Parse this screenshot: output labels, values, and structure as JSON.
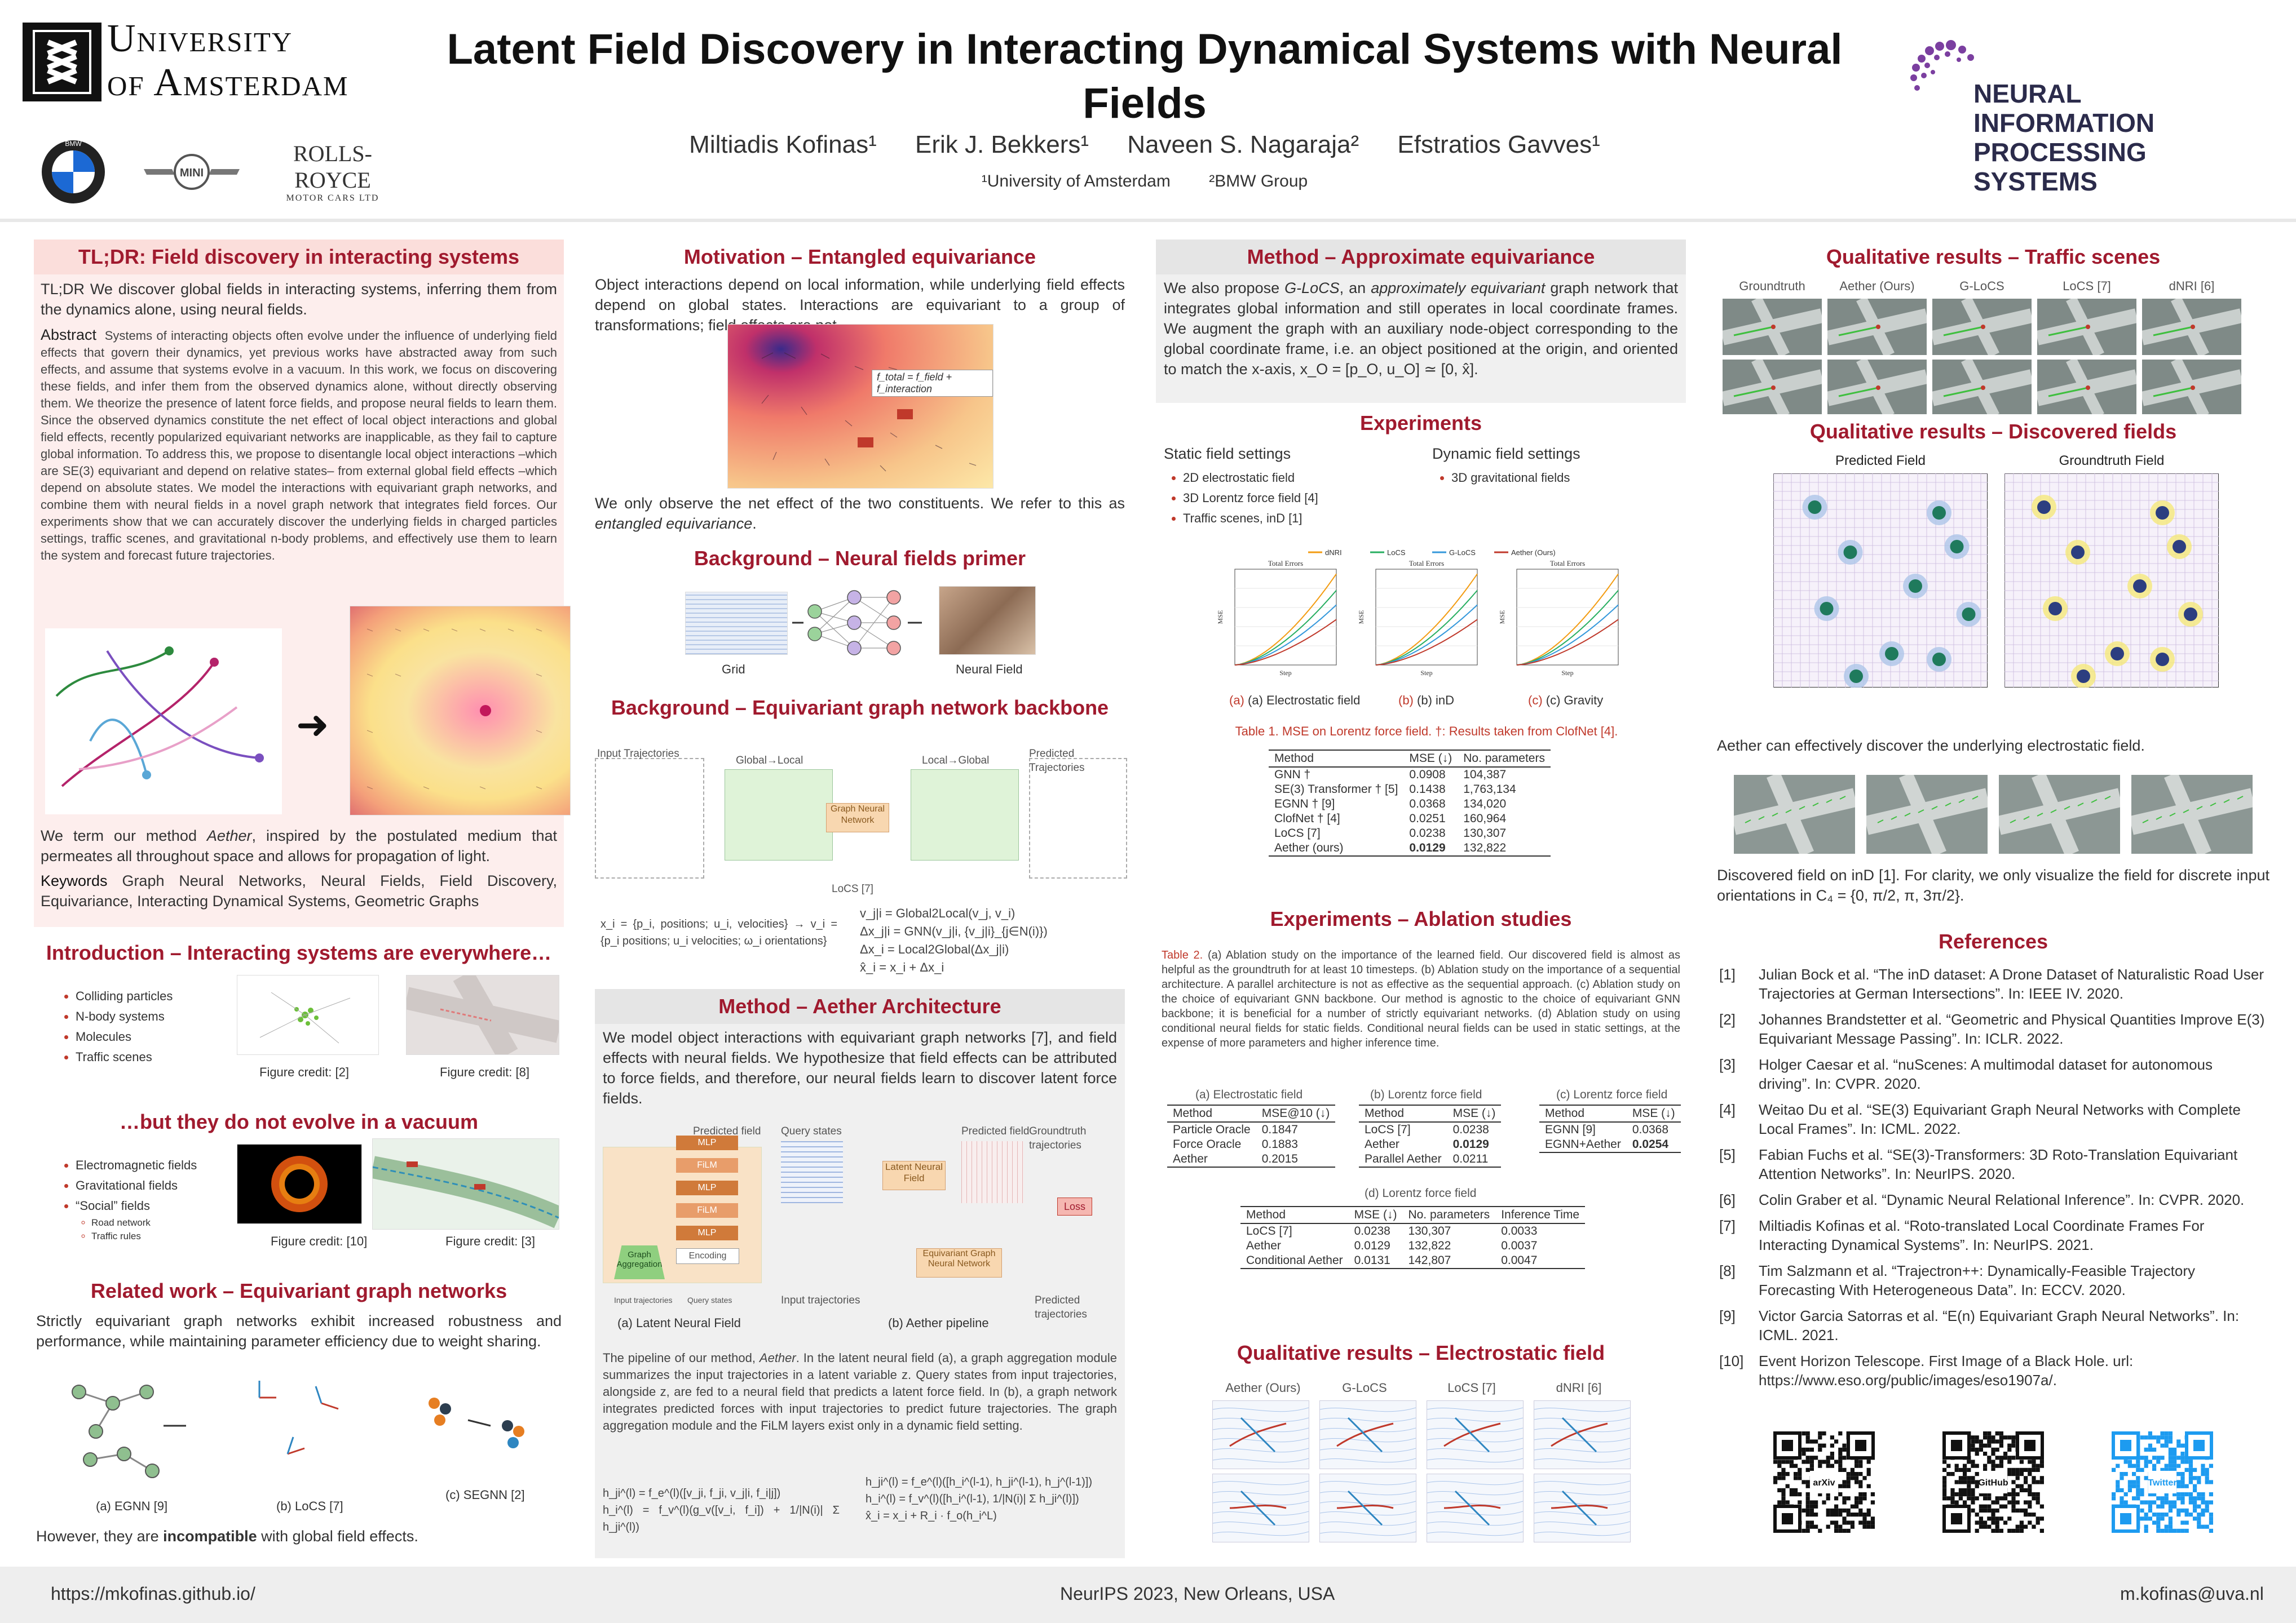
{
  "header": {
    "university": [
      "University",
      "of Amsterdam"
    ],
    "sponsors": {
      "bmw": "BMW",
      "mini": "MINI",
      "rr_main": "ROLLS-ROYCE",
      "rr_sub": "MOTOR CARS LTD"
    },
    "title": "Latent Field Discovery in Interacting Dynamical Systems with Neural Fields",
    "authors": [
      "Miltiadis Kofinas¹",
      "Erik J. Bekkers¹",
      "Naveen S. Nagaraja²",
      "Efstratios Gavves¹"
    ],
    "affiliations": [
      "¹University of Amsterdam",
      "²BMW Group"
    ],
    "neurips": [
      "NEURAL INFORMATION",
      "PROCESSING SYSTEMS"
    ]
  },
  "col1": {
    "tldr_title": "TL;DR: Field discovery in interacting systems",
    "tldr_label": "TL;DR",
    "tldr_text": "We discover global fields in interacting systems, inferring them from the dynamics alone, using neural fields.",
    "abstract_label": "Abstract",
    "abstract_text": "Systems of interacting objects often evolve under the influence of underlying field effects that govern their dynamics, yet previous works have abstracted away from such effects, and assume that systems evolve in a vacuum. In this work, we focus on discovering these fields, and infer them from the observed dynamics alone, without directly observing them. We theorize the presence of latent force fields, and propose neural fields to learn them. Since the observed dynamics constitute the net effect of local object interactions and global field effects, recently popularized equivariant networks are inapplicable, as they fail to capture global information. To address this, we propose to disentangle local object interactions –which are SE(3) equivariant and depend on relative states– from external global field effects –which depend on absolute states. We model the interactions with equivariant graph networks, and combine them with neural fields in a novel graph network that integrates field forces. Our experiments show that we can accurately discover the underlying fields in charged particles settings, traffic scenes, and gravitational n-body problems, and effectively use them to learn the system and forecast future trajectories.",
    "aether_text_a": "We term our method ",
    "aether_em": "Aether",
    "aether_text_b": ", inspired by the postulated medium that permeates all throughout space and allows for propagation of light.",
    "keywords_label": "Keywords",
    "keywords": "Graph Neural Networks, Neural Fields, Field Discovery, Equivariance, Interacting Dynamical Systems, Geometric Graphs",
    "intro_title": "Introduction – Interacting systems are everywhere…",
    "intro_items": [
      "Colliding particles",
      "N-body systems",
      "Molecules",
      "Traffic scenes"
    ],
    "intro_credit_1": "Figure credit: [2]",
    "intro_credit_2": "Figure credit: [8]",
    "vacuum_title": "…but they do not evolve in a vacuum",
    "vacuum_items": [
      "Electromagnetic fields",
      "Gravitational fields",
      "“Social” fields"
    ],
    "vacuum_sub": [
      "Road network",
      "Traffic rules"
    ],
    "vacuum_credit_1": "Figure credit: [10]",
    "vacuum_credit_2": "Figure credit: [3]",
    "related_title": "Related work – Equivariant graph networks",
    "related_text": "Strictly equivariant graph networks exhibit increased robustness and performance, while maintaining parameter efficiency due to weight sharing.",
    "related_caps": [
      "(a) EGNN [9]",
      "(b) LoCS [7]",
      "(c) SEGNN [2]"
    ],
    "related_bottom_a": "However, they are ",
    "related_bottom_b": "incompatible",
    "related_bottom_c": " with global field effects."
  },
  "col2": {
    "motivation_title": "Motivation – Entangled equivariance",
    "motivation_text": "Object interactions depend on local information, while underlying field effects depend on global states. Interactions are equivariant to a group of transformations; field effects are not.",
    "motivation_eq": "f_total = f_field + f_interaction",
    "motivation_bottom_a": "We only observe the net effect of the two constituents. We refer to this as ",
    "motivation_bottom_em": "entangled equivariance",
    "motivation_bottom_b": ".",
    "nf_title": "Background – Neural fields primer",
    "nf_caps": [
      "Grid",
      "Neural Field"
    ],
    "egn_title": "Background – Equivariant graph network backbone",
    "egn_labels": [
      "Input Trajectories",
      "Global→Local",
      "Graph Neural Network",
      "Local→Global",
      "Predicted Trajectories",
      "LoCS [7]"
    ],
    "egn_eq_left": [
      "x_i = {p_i, positions; u_i, velocities} → v_i = {p_i positions; u_i velocities; ω_i orientations}"
    ],
    "egn_eq_right": [
      "v_j|i = Global2Local(v_j, v_i)",
      "Δx_j|i = GNN(v_j|i, {v_j|i}_{j∈N(i)})",
      "Δx_i = Local2Global(Δx_j|i)",
      "x̂_i = x_i + Δx_i"
    ],
    "arch_title": "Method – Aether Architecture",
    "arch_text": "We model object interactions with equivariant graph networks [7], and field effects with neural fields. We hypothesize that field effects can be attributed to force fields, and therefore, our neural fields learn to discover latent force fields.",
    "arch_fig_labels": [
      "Predicted field",
      "MLP",
      "FiLM",
      "MLP",
      "FiLM",
      "MLP",
      "Encoding",
      "Graph Aggregation",
      "Input trajectories",
      "Query states"
    ],
    "arch_fig2_labels": [
      "Query states",
      "Latent Neural Field",
      "Predicted field",
      "Groundtruth trajectories",
      "Loss",
      "Equivariant Graph Neural Network",
      "Input trajectories",
      "Predicted trajectories"
    ],
    "arch_caps": [
      "(a) Latent Neural Field",
      "(b) Aether pipeline"
    ],
    "arch_pipeline_a": "The pipeline of our method, ",
    "arch_pipeline_em": "Aether",
    "arch_pipeline_b": ". In the latent neural field (a), a graph aggregation module summarizes the input trajectories in a latent variable z. Query states from input trajectories, alongside z, are fed to a neural field that predicts a latent force field. In (b), a graph network integrates predicted forces with input trajectories to predict future trajectories. The graph aggregation module and the FiLM layers exist only in a dynamic field setting.",
    "arch_eqs": [
      "h_ji^(l) = f_e^(l)([v_ji, f_ji, v_j|i, f_i|j])",
      "h_i^(l) = f_v^(l)(g_v([v_i, f_i]) + 1/|N(i)| Σ h_ji^(l))",
      "h_ji^(l) = f_e^(l)([h_i^(l-1), h_ji^(l-1), h_j^(l-1)])",
      "h_i^(l) = f_v^(l)([h_i^(l-1), 1/|N(i)| Σ h_ji^(l)])",
      "x̂_i = x_i + R_i · f_o(h_i^L)"
    ]
  },
  "col3": {
    "approx_title": "Method – Approximate equivariance",
    "approx_text_a": "We also propose ",
    "approx_em1": "G-LoCS",
    "approx_text_b": ", an ",
    "approx_em2": "approximately equivariant",
    "approx_text_c": " graph network that integrates global information and still operates in local coordinate frames. We augment the graph with an auxiliary node-object corresponding to the global coordinate frame, i.e. an object positioned at the origin, and oriented to match the x-axis, x_O = [p_O, u_O] ≃ [0, x̂].",
    "exp_title": "Experiments",
    "static_head": "Static field settings",
    "static_items": [
      "2D electrostatic field",
      "3D Lorentz force field [4]",
      "Traffic scenes, inD [1]"
    ],
    "dyn_head": "Dynamic field settings",
    "dyn_items": [
      "3D gravitational fields"
    ],
    "plot_caps": [
      "(a) Electrostatic field",
      "(b) inD",
      "(c) Gravity"
    ],
    "plot_titles": [
      "Total Errors",
      "Total Errors",
      "Total Errors"
    ],
    "plot_xlabel": "Step",
    "plot_ylabel": "MSE",
    "table1_caption_a": "Table 1.",
    "table1_caption_b": " MSE on Lorentz force field. †: Results taken from ClofNet [4].",
    "table1_head": [
      "Method",
      "MSE (↓)",
      "No. parameters"
    ],
    "table1_rows": [
      [
        "GNN †",
        "0.0908",
        "104,387"
      ],
      [
        "SE(3) Transformer † [5]",
        "0.1438",
        "1,763,134"
      ],
      [
        "EGNN † [9]",
        "0.0368",
        "134,020"
      ],
      [
        "ClofNet † [4]",
        "0.0251",
        "160,964"
      ],
      [
        "LoCS [7]",
        "0.0238",
        "130,307"
      ],
      [
        "Aether (ours)",
        "0.0129",
        "132,822"
      ]
    ],
    "abl_title": "Experiments – Ablation studies",
    "abl_caption_a": "Table 2.",
    "abl_caption_b": " (a) Ablation study on the importance of the learned field. Our discovered field is almost as helpful as the groundtruth for at least 10 timesteps. (b) Ablation study on the importance of a sequential architecture. A parallel architecture is not as effective as the sequential approach. (c) Ablation study on the choice of equivariant GNN backbone. Our method is agnostic to the choice of equivariant GNN backbone; it is beneficial for a number of strictly equivariant networks. (d) Ablation study on using conditional neural fields for static fields. Conditional neural fields can be used in static settings, at the expense of more parameters and higher inference time.",
    "abl_a_cap": "(a) Electrostatic field",
    "abl_a_head": [
      "Method",
      "MSE@10 (↓)"
    ],
    "abl_a_rows": [
      [
        "Particle Oracle",
        "0.1847"
      ],
      [
        "Force Oracle",
        "0.1883"
      ],
      [
        "Aether",
        "0.2015"
      ]
    ],
    "abl_b_cap": "(b) Lorentz force field",
    "abl_b_head": [
      "Method",
      "MSE (↓)"
    ],
    "abl_b_rows": [
      [
        "LoCS [7]",
        "0.0238"
      ],
      [
        "Aether",
        "0.0129"
      ],
      [
        "Parallel Aether",
        "0.0211"
      ]
    ],
    "abl_c_cap": "(c) Lorentz force field",
    "abl_c_head": [
      "Method",
      "MSE (↓)"
    ],
    "abl_c_rows": [
      [
        "EGNN [9]",
        "0.0368"
      ],
      [
        "EGNN+Aether",
        "0.0254"
      ]
    ],
    "abl_d_cap": "(d) Lorentz force field",
    "abl_d_head": [
      "Method",
      "MSE (↓)",
      "No. parameters",
      "Inference Time"
    ],
    "abl_d_rows": [
      [
        "LoCS [7]",
        "0.0238",
        "130,307",
        "0.0033"
      ],
      [
        "Aether",
        "0.0129",
        "132,822",
        "0.0037"
      ],
      [
        "Conditional Aether",
        "0.0131",
        "142,807",
        "0.0047"
      ]
    ],
    "qe_title": "Qualitative results – Electrostatic field",
    "qe_heads": [
      "Aether (Ours)",
      "G-LoCS",
      "LoCS [7]",
      "dNRI [6]"
    ]
  },
  "col4": {
    "traffic_title": "Qualitative results – Traffic scenes",
    "traffic_heads": [
      "Groundtruth",
      "Aether (Ours)",
      "G-LoCS",
      "LoCS [7]",
      "dNRI [6]"
    ],
    "disc_title": "Qualitative results – Discovered fields",
    "disc_heads": [
      "Predicted Field",
      "Groundtruth Field"
    ],
    "disc_text": "Aether can effectively discover the underlying electrostatic field.",
    "ind_text": "Discovered field on inD [1]. For clarity, we only visualize the field for discrete input orientations in C₄ = {0, π/2, π, 3π/2}.",
    "refs_title": "References",
    "refs": [
      [
        "[1]",
        "Julian Bock et al. “The inD dataset: A Drone Dataset of Naturalistic Road User Trajectories at German Intersections”. In: IEEE IV. 2020."
      ],
      [
        "[2]",
        "Johannes Brandstetter et al. “Geometric and Physical Quantities Improve E(3) Equivariant Message Passing”. In: ICLR. 2022."
      ],
      [
        "[3]",
        "Holger Caesar et al. “nuScenes: A multimodal dataset for autonomous driving”. In: CVPR. 2020."
      ],
      [
        "[4]",
        "Weitao Du et al. “SE(3) Equivariant Graph Neural Networks with Complete Local Frames”. In: ICML. 2022."
      ],
      [
        "[5]",
        "Fabian Fuchs et al. “SE(3)-Transformers: 3D Roto-Translation Equivariant Attention Networks”. In: NeurIPS. 2020."
      ],
      [
        "[6]",
        "Colin Graber et al. “Dynamic Neural Relational Inference”. In: CVPR. 2020."
      ],
      [
        "[7]",
        "Miltiadis Kofinas et al. “Roto-translated Local Coordinate Frames For Interacting Dynamical Systems”. In: NeurIPS. 2021."
      ],
      [
        "[8]",
        "Tim Salzmann et al. “Trajectron++: Dynamically-Feasible Trajectory Forecasting With Heterogeneous Data”. In: ECCV. 2020."
      ],
      [
        "[9]",
        "Victor Garcia Satorras et al. “E(n) Equivariant Graph Neural Networks”. In: ICML. 2021."
      ],
      [
        "[10]",
        "Event Horizon Telescope. First Image of a Black Hole. url: https://www.eso.org/public/images/eso1907a/."
      ]
    ],
    "qr_labels": [
      "arXiv",
      "GitHub",
      "Twitter"
    ]
  },
  "footer": {
    "left": "https://mkofinas.github.io/",
    "center": "NeurIPS 2023, New Orleans, USA",
    "right": "m.kofinas@uva.nl"
  },
  "colors": {
    "accent": "#a01a2e",
    "neurips": "#7b3fa0"
  }
}
